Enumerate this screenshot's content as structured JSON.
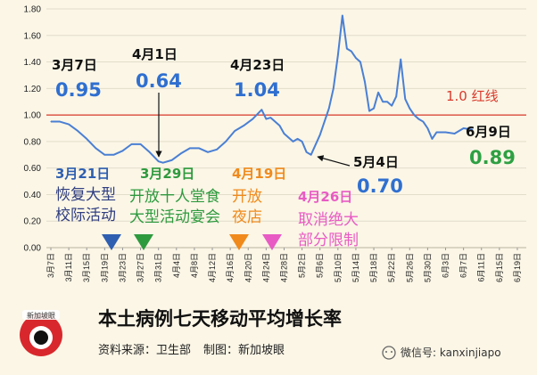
{
  "chart_data": {
    "type": "line",
    "title": "本土病例七天移动平均增长率",
    "source": "资料来源：卫生部",
    "maker": "制图：新加坡眼",
    "ylim": [
      0,
      1.8
    ],
    "yticks": [
      "0.00",
      "0.20",
      "0.40",
      "0.60",
      "0.80",
      "1.00",
      "1.20",
      "1.40",
      "1.60",
      "1.80"
    ],
    "x_start": "2021-03-07",
    "x_tick_labels": [
      "3月7日",
      "3月11日",
      "3月15日",
      "3月19日",
      "3月23日",
      "3月27日",
      "3月31日",
      "4月4日",
      "4月8日",
      "4月12日",
      "4月16日",
      "4月20日",
      "4月24日",
      "4月28日",
      "5月2日",
      "5月6日",
      "5月10日",
      "5月14日",
      "5月18日",
      "5月22日",
      "5月26日",
      "5月30日",
      "6月3日",
      "6月7日",
      "6月11日",
      "6月15日",
      "6月19日"
    ],
    "series": [
      {
        "color": "#4a7fd4",
        "points": [
          [
            "2021-03-07",
            0.95
          ],
          [
            "2021-03-09",
            0.95
          ],
          [
            "2021-03-11",
            0.93
          ],
          [
            "2021-03-13",
            0.88
          ],
          [
            "2021-03-15",
            0.82
          ],
          [
            "2021-03-17",
            0.75
          ],
          [
            "2021-03-19",
            0.7
          ],
          [
            "2021-03-21",
            0.7
          ],
          [
            "2021-03-23",
            0.73
          ],
          [
            "2021-03-25",
            0.78
          ],
          [
            "2021-03-27",
            0.78
          ],
          [
            "2021-03-29",
            0.72
          ],
          [
            "2021-03-31",
            0.65
          ],
          [
            "2021-04-01",
            0.64
          ],
          [
            "2021-04-03",
            0.66
          ],
          [
            "2021-04-05",
            0.71
          ],
          [
            "2021-04-07",
            0.75
          ],
          [
            "2021-04-09",
            0.75
          ],
          [
            "2021-04-11",
            0.72
          ],
          [
            "2021-04-13",
            0.74
          ],
          [
            "2021-04-15",
            0.8
          ],
          [
            "2021-04-17",
            0.88
          ],
          [
            "2021-04-19",
            0.92
          ],
          [
            "2021-04-21",
            0.97
          ],
          [
            "2021-04-23",
            1.04
          ],
          [
            "2021-04-24",
            0.97
          ],
          [
            "2021-04-25",
            0.98
          ],
          [
            "2021-04-27",
            0.92
          ],
          [
            "2021-04-28",
            0.86
          ],
          [
            "2021-04-30",
            0.8
          ],
          [
            "2021-05-01",
            0.82
          ],
          [
            "2021-05-02",
            0.8
          ],
          [
            "2021-05-03",
            0.72
          ],
          [
            "2021-05-04",
            0.7
          ],
          [
            "2021-05-06",
            0.85
          ],
          [
            "2021-05-07",
            0.95
          ],
          [
            "2021-05-08",
            1.05
          ],
          [
            "2021-05-09",
            1.2
          ],
          [
            "2021-05-10",
            1.45
          ],
          [
            "2021-05-11",
            1.75
          ],
          [
            "2021-05-12",
            1.5
          ],
          [
            "2021-05-13",
            1.48
          ],
          [
            "2021-05-14",
            1.43
          ],
          [
            "2021-05-15",
            1.4
          ],
          [
            "2021-05-16",
            1.25
          ],
          [
            "2021-05-17",
            1.03
          ],
          [
            "2021-05-18",
            1.05
          ],
          [
            "2021-05-19",
            1.17
          ],
          [
            "2021-05-20",
            1.1
          ],
          [
            "2021-05-21",
            1.1
          ],
          [
            "2021-05-22",
            1.07
          ],
          [
            "2021-05-23",
            1.14
          ],
          [
            "2021-05-24",
            1.42
          ],
          [
            "2021-05-25",
            1.12
          ],
          [
            "2021-05-26",
            1.05
          ],
          [
            "2021-05-27",
            1.0
          ],
          [
            "2021-05-28",
            0.97
          ],
          [
            "2021-05-29",
            0.95
          ],
          [
            "2021-05-30",
            0.9
          ],
          [
            "2021-05-31",
            0.82
          ],
          [
            "2021-06-01",
            0.87
          ],
          [
            "2021-06-03",
            0.87
          ],
          [
            "2021-06-05",
            0.86
          ],
          [
            "2021-06-07",
            0.9
          ],
          [
            "2021-06-09",
            0.89
          ]
        ]
      }
    ],
    "reference_line": {
      "value": 1.0,
      "label": "1.0 红线",
      "color": "#d93a2b"
    },
    "annotations": [
      {
        "id": "mar7",
        "date": "3月7日",
        "value": "0.95",
        "value_color": "#2f6fd0"
      },
      {
        "id": "apr1",
        "date": "4月1日",
        "value": "0.64",
        "value_color": "#2f6fd0"
      },
      {
        "id": "apr23",
        "date": "4月23日",
        "value": "1.04",
        "value_color": "#2f6fd0"
      },
      {
        "id": "may4",
        "date": "5月4日",
        "value": "0.70",
        "value_color": "#2f6fd0"
      },
      {
        "id": "jun9",
        "date": "6月9日",
        "value": "0.89",
        "value_color": "#2ea043"
      }
    ],
    "events": [
      {
        "id": "mar21",
        "date": "3月21日",
        "lines": [
          "恢复大型",
          "校际活动"
        ],
        "color": "#2f5fb0",
        "text_color": "#2f3d80"
      },
      {
        "id": "mar29",
        "date": "3月29日",
        "lines": [
          "开放十人堂食",
          "大型活动宴会"
        ],
        "color": "#2e9a3e",
        "text_color": "#2e9a3e"
      },
      {
        "id": "apr19",
        "date": "4月19日",
        "lines": [
          "开放",
          "夜店"
        ],
        "color": "#f08a1c",
        "text_color": "#f08a1c"
      },
      {
        "id": "apr26",
        "date": "4月26日",
        "lines": [
          "取消绝大",
          "部分限制"
        ],
        "color": "#e85bc4",
        "text_color": "#e85bc4"
      }
    ]
  },
  "watermark": {
    "logo_text": "新加坡眼",
    "account": "微信号: kanxinjiapo"
  }
}
